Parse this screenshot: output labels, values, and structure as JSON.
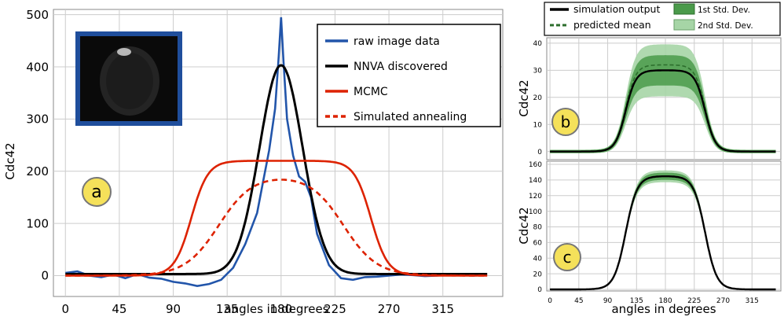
{
  "chart_data": [
    {
      "panel": "a",
      "type": "line",
      "xlabel": "angles in degrees",
      "ylabel": "Cdc42",
      "xticks": [
        0,
        45,
        90,
        135,
        180,
        225,
        270,
        315
      ],
      "yticks": [
        0,
        100,
        200,
        300,
        400,
        500
      ],
      "xlim": [
        -10,
        365
      ],
      "ylim": [
        -40,
        510
      ],
      "grid": true,
      "legend_position": "top-right",
      "inset": "cell-image",
      "colors": {
        "raw": "#2255aa",
        "nnva": "#000000",
        "mcmc": "#dd2200",
        "sa": "#dd2200",
        "grid": "#bbbbbb",
        "inset_border": "#1f4e9c"
      },
      "series": [
        {
          "name": "raw image data",
          "key": "raw",
          "style": "solid",
          "x": [
            0,
            10,
            20,
            30,
            40,
            50,
            60,
            70,
            80,
            90,
            100,
            110,
            120,
            130,
            140,
            150,
            155,
            160,
            165,
            170,
            175,
            178,
            180,
            182,
            185,
            190,
            195,
            200,
            205,
            210,
            220,
            230,
            240,
            250,
            260,
            270,
            280,
            290,
            300,
            310,
            320,
            330,
            340,
            350
          ],
          "y": [
            5,
            8,
            0,
            -3,
            2,
            -5,
            3,
            -4,
            -6,
            -12,
            -15,
            -20,
            -16,
            -8,
            15,
            60,
            90,
            120,
            180,
            240,
            320,
            420,
            495,
            410,
            300,
            230,
            190,
            180,
            150,
            80,
            20,
            -5,
            -8,
            -3,
            -2,
            0,
            2,
            1,
            -1,
            0,
            2,
            1,
            0,
            1
          ]
        },
        {
          "name": "NNVA discovered",
          "key": "nnva",
          "style": "solid",
          "fn": "gauss",
          "amp": 400,
          "mu": 180,
          "sigma": 18,
          "base": 3,
          "range": [
            0,
            352
          ]
        },
        {
          "name": "MCMC",
          "key": "mcmc",
          "style": "solid",
          "fn": "plateau",
          "amp": 220,
          "mu": 180,
          "half": 75,
          "width": 7,
          "base": 0,
          "range": [
            0,
            352
          ]
        },
        {
          "name": "Simulated annealing",
          "key": "sa",
          "style": "dashed",
          "fn": "plateau",
          "amp": 193,
          "mu": 180,
          "half": 52,
          "width": 14,
          "base": 0,
          "range": [
            0,
            352
          ]
        }
      ],
      "badge": "a"
    },
    {
      "panel": "b",
      "type": "line",
      "ylabel": "Cdc42",
      "yticks": [
        0,
        10,
        20,
        30,
        40
      ],
      "xticks": [
        0,
        45,
        90,
        135,
        180,
        225,
        270,
        315
      ],
      "xlim": [
        -5,
        360
      ],
      "ylim": [
        -3,
        42
      ],
      "grid": true,
      "colors": {
        "line": "#000000",
        "mean": "#2c6e2c",
        "band1": "#4a9a4a",
        "band2": "#a6d5a6"
      },
      "sim": {
        "amp": 30,
        "mu": 180,
        "half": 62,
        "width": 8,
        "base": 0
      },
      "mean": {
        "amp": 32,
        "mu": 180,
        "half": 62,
        "width": 8,
        "base": 0
      },
      "band1": {
        "amp": 5
      },
      "band2": {
        "amp": 9
      },
      "badge": "b"
    },
    {
      "panel": "c",
      "type": "line",
      "ylabel": "Cdc42",
      "xlabel": "angles in degrees",
      "yticks": [
        0,
        20,
        40,
        60,
        80,
        100,
        120,
        140,
        160
      ],
      "xticks": [
        0,
        45,
        90,
        135,
        180,
        225,
        270,
        315
      ],
      "xlim": [
        -5,
        360
      ],
      "ylim": [
        -2,
        164
      ],
      "grid": true,
      "colors": {
        "line": "#000000",
        "band1": "#4a9a4a",
        "band2": "#a6d5a6"
      },
      "sim": {
        "amp": 145,
        "mu": 180,
        "half": 62,
        "width": 9,
        "base": 0
      },
      "band1": {
        "amp": 4
      },
      "band2": {
        "amp": 7
      },
      "badge": "c"
    }
  ],
  "shared_legend": {
    "items": [
      {
        "label": "simulation output",
        "kind": "line-solid"
      },
      {
        "label": "1st Std. Dev.",
        "kind": "patch-dark"
      },
      {
        "label": "predicted mean",
        "kind": "line-dashed"
      },
      {
        "label": "2nd Std. Dev.",
        "kind": "patch-light"
      }
    ]
  }
}
